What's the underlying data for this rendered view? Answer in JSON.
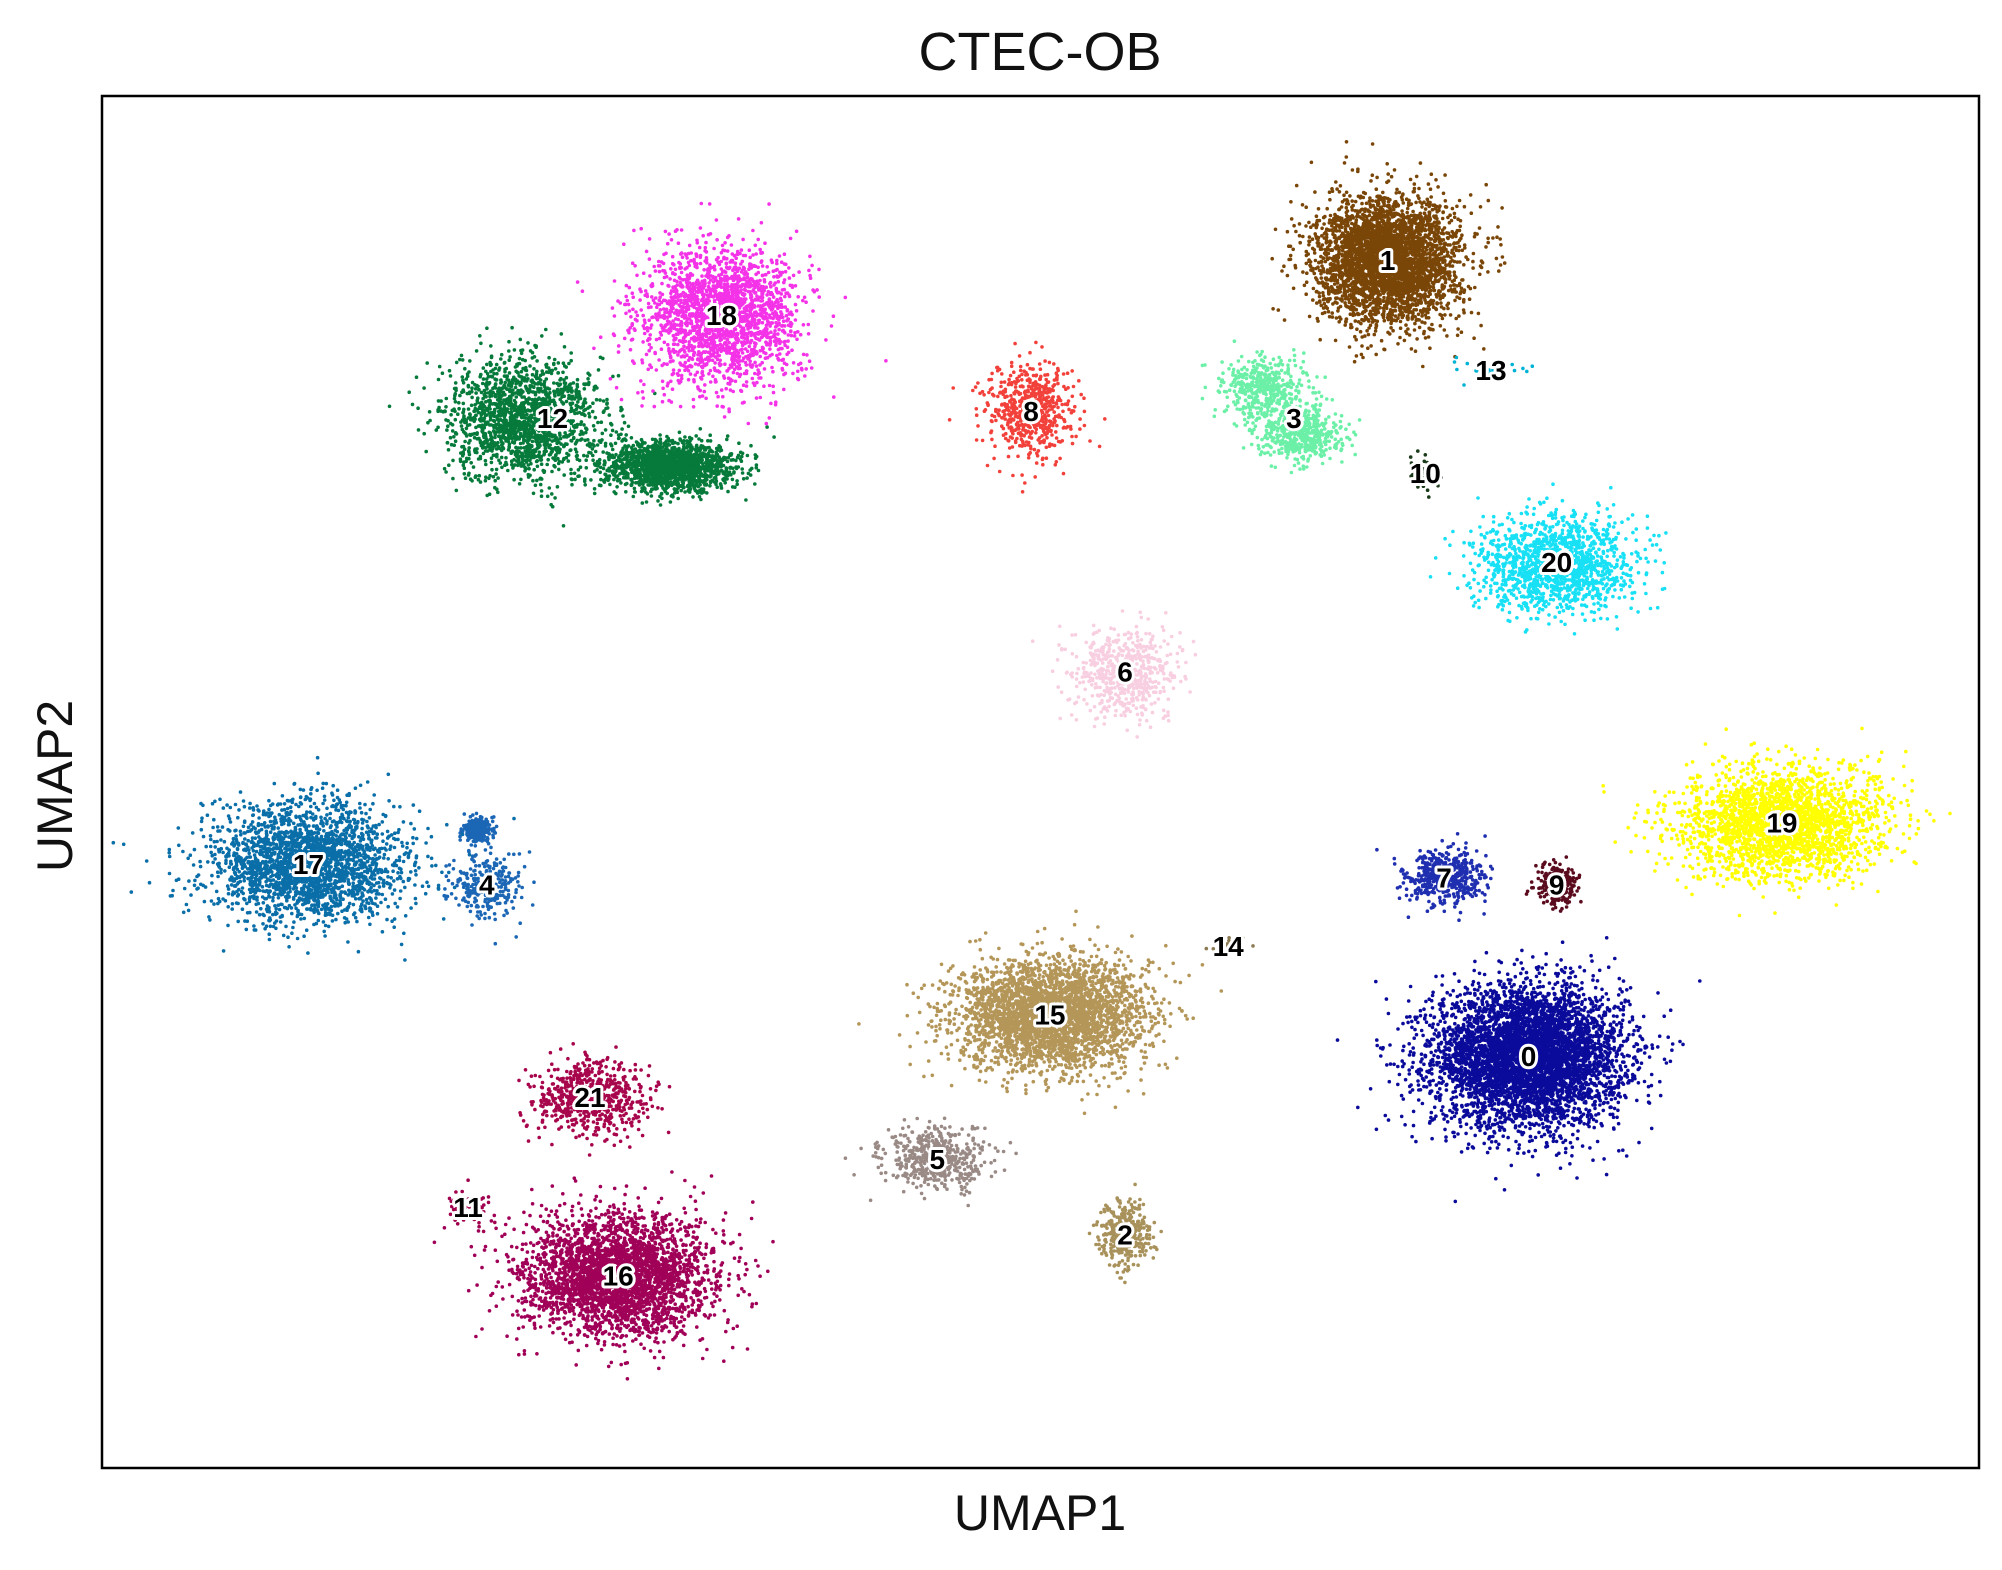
{
  "chart_data": {
    "type": "scatter",
    "title": "CTEC-OB",
    "xlabel": "UMAP1",
    "ylabel": "UMAP2",
    "xlim": [
      0,
      100
    ],
    "ylim": [
      0,
      100
    ],
    "grid": false,
    "legend": "on data",
    "ticks_visible": false,
    "clusters": [
      {
        "name": "0",
        "color": "#0b0b9b",
        "x": 76.0,
        "y": 30.0,
        "count": 5200
      },
      {
        "name": "1",
        "color": "#7a4608",
        "x": 68.5,
        "y": 88.0,
        "count": 3600
      },
      {
        "name": "2",
        "color": "#a8915a",
        "x": 54.5,
        "y": 17.0,
        "count": 380
      },
      {
        "name": "3",
        "color": "#6cf0a8",
        "x": 63.5,
        "y": 76.5,
        "count": 950
      },
      {
        "name": "4",
        "color": "#1c67b5",
        "x": 20.5,
        "y": 42.5,
        "count": 520
      },
      {
        "name": "5",
        "color": "#9a8a86",
        "x": 44.5,
        "y": 22.5,
        "count": 500
      },
      {
        "name": "6",
        "color": "#f8cfe0",
        "x": 54.5,
        "y": 58.0,
        "count": 620
      },
      {
        "name": "7",
        "color": "#1f2fb0",
        "x": 71.5,
        "y": 43.0,
        "count": 520
      },
      {
        "name": "8",
        "color": "#f2413b",
        "x": 49.5,
        "y": 77.0,
        "count": 620
      },
      {
        "name": "9",
        "color": "#5a0c1e",
        "x": 77.5,
        "y": 42.5,
        "count": 260
      },
      {
        "name": "10",
        "color": "#1a3a1a",
        "x": 70.5,
        "y": 72.5,
        "count": 40
      },
      {
        "name": "11",
        "color": "#a0004e",
        "x": 19.5,
        "y": 19.0,
        "count": 60
      },
      {
        "name": "12",
        "color": "#067a3a",
        "x": 24.0,
        "y": 76.5,
        "count": 3400
      },
      {
        "name": "13",
        "color": "#00b3d6",
        "x": 74.0,
        "y": 80.0,
        "count": 30
      },
      {
        "name": "14",
        "color": "#8c7a52",
        "x": 60.0,
        "y": 38.0,
        "count": 20
      },
      {
        "name": "15",
        "color": "#b49659",
        "x": 50.5,
        "y": 33.0,
        "count": 3200
      },
      {
        "name": "16",
        "color": "#a00057",
        "x": 27.5,
        "y": 14.0,
        "count": 3200
      },
      {
        "name": "17",
        "color": "#0a6ea8",
        "x": 11.0,
        "y": 44.0,
        "count": 2400
      },
      {
        "name": "18",
        "color": "#f433e8",
        "x": 33.0,
        "y": 84.0,
        "count": 2100
      },
      {
        "name": "19",
        "color": "#ffff00",
        "x": 89.5,
        "y": 47.0,
        "count": 2400
      },
      {
        "name": "20",
        "color": "#18e0f5",
        "x": 77.5,
        "y": 66.0,
        "count": 1400
      },
      {
        "name": "21",
        "color": "#a8064c",
        "x": 26.0,
        "y": 27.0,
        "count": 650
      }
    ]
  }
}
